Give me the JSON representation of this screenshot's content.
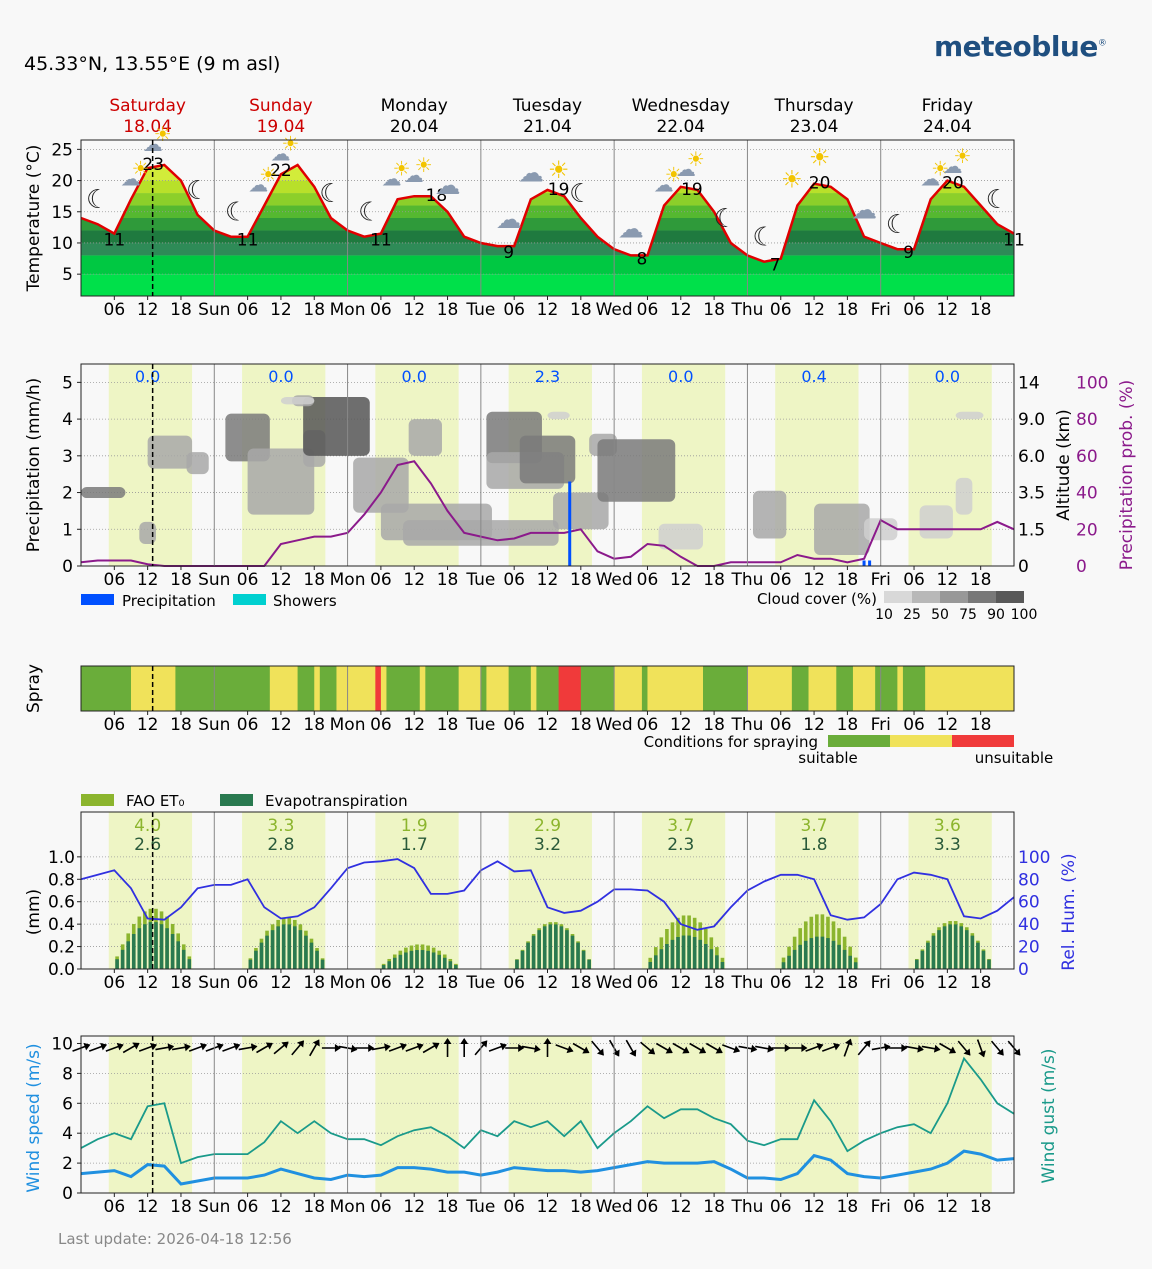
{
  "header": {
    "coordinates": "45.33°N, 13.55°E (9 m asl)",
    "brand": "meteoblue",
    "brand_mark": "®"
  },
  "footer": {
    "last_update": "Last update: 2026-04-18 12:56"
  },
  "days": [
    {
      "name": "Saturday",
      "date": "18.04",
      "weekend": true
    },
    {
      "name": "Sunday",
      "date": "19.04",
      "weekend": true
    },
    {
      "name": "Monday",
      "date": "20.04",
      "weekend": false
    },
    {
      "name": "Tuesday",
      "date": "21.04",
      "weekend": false
    },
    {
      "name": "Wednesday",
      "date": "22.04",
      "weekend": false
    },
    {
      "name": "Thursday",
      "date": "23.04",
      "weekend": false
    },
    {
      "name": "Friday",
      "date": "24.04",
      "weekend": false
    }
  ],
  "x_axis": {
    "hour_ticks": [
      "06",
      "12",
      "18"
    ],
    "day_abbrev": [
      "Sun",
      "Mon",
      "Tue",
      "Wed",
      "Thu",
      "Fri"
    ]
  },
  "current_time_hours": 12.9,
  "colors": {
    "weekend_text": "#cc0000",
    "temperature_line": "#e00000",
    "precipitation_prob": "#8b1a8b",
    "precipitation": "#0050ff",
    "showers": "#00d0d0",
    "rel_humidity": "#3030e0",
    "fao_et0": "#8cb52e",
    "evapotranspiration": "#2a7a50",
    "wind_speed": "#2090e0",
    "wind_gust": "#1a9a8a",
    "spray_suitable": "#6aad3a",
    "spray_medium": "#f0e25a",
    "spray_unsuitable": "#f03a3a",
    "daylight_band": "#eef5c5"
  },
  "chart_data": [
    {
      "id": "temperature",
      "type": "line",
      "ylabel": "Temperature (°C)",
      "yticks": [
        5,
        10,
        15,
        20,
        25
      ],
      "ylim": [
        1.5,
        26.5
      ],
      "x_unit": "hours from 2026-04-18 00:00",
      "x": [
        0,
        3,
        6,
        9,
        12,
        15,
        18,
        21,
        24,
        27,
        30,
        33,
        36,
        39,
        42,
        45,
        48,
        51,
        54,
        57,
        60,
        63,
        66,
        69,
        72,
        75,
        78,
        81,
        84,
        87,
        90,
        93,
        96,
        99,
        102,
        105,
        108,
        111,
        114,
        117,
        120,
        123,
        126,
        129,
        132,
        135,
        138,
        141,
        144,
        147,
        150,
        153,
        156,
        159,
        162,
        165,
        168
      ],
      "temperature": [
        14,
        13,
        11.5,
        17,
        22,
        22.5,
        20,
        14.5,
        12,
        11,
        11,
        16,
        21,
        22.5,
        19,
        14,
        12,
        11,
        11.5,
        17,
        17.5,
        17.5,
        15,
        11,
        10,
        9.5,
        9.5,
        17,
        18.5,
        17.5,
        14,
        11,
        9,
        8,
        8,
        16,
        19,
        18.5,
        15,
        10,
        8,
        7,
        7.5,
        16,
        19.5,
        19,
        17,
        11,
        10,
        9,
        9,
        17,
        20,
        19,
        16,
        13,
        11.5
      ],
      "min_labels": [
        {
          "x": 6,
          "v": 11
        },
        {
          "x": 30,
          "v": 11
        },
        {
          "x": 54,
          "v": 11
        },
        {
          "x": 77,
          "v": 9
        },
        {
          "x": 101,
          "v": 8
        },
        {
          "x": 125,
          "v": 7
        },
        {
          "x": 149,
          "v": 9
        },
        {
          "x": 168,
          "v": 11
        }
      ],
      "max_labels": [
        {
          "x": 13,
          "v": 23
        },
        {
          "x": 36,
          "v": 22
        },
        {
          "x": 64,
          "v": 18
        },
        {
          "x": 86,
          "v": 19
        },
        {
          "x": 110,
          "v": 19
        },
        {
          "x": 133,
          "v": 20
        },
        {
          "x": 157,
          "v": 20
        }
      ]
    },
    {
      "id": "precipitation",
      "type": "bar",
      "ylabel": "Precipitation (mm/h)",
      "ylabel_right_altitude": "Altitude (km)",
      "ylabel_right_prob": "Precipitation prob. (%)",
      "yticks": [
        0,
        1,
        2,
        3,
        4,
        5
      ],
      "altitude_ticks": [
        "0",
        "1.5",
        "3.5",
        "6.0",
        "9.0",
        "14"
      ],
      "prob_ticks": [
        "0",
        "20",
        "40",
        "60",
        "80",
        "100"
      ],
      "ylim": [
        0,
        5.5
      ],
      "daily_totals": [
        "0.0",
        "0.0",
        "0.0",
        "2.3",
        "0.0",
        "0.4",
        "0.0"
      ],
      "legend": [
        "Precipitation",
        "Showers"
      ],
      "cloud_cover_label": "Cloud cover (%)",
      "cloud_cover_levels": [
        "10",
        "25",
        "50",
        "75",
        "90",
        "100"
      ],
      "precip_bars": [
        {
          "x": 88,
          "v": 2.3
        },
        {
          "x": 141,
          "v": 0.15
        },
        {
          "x": 142,
          "v": 0.15
        }
      ],
      "prob_x": [
        0,
        3,
        6,
        9,
        12,
        15,
        18,
        21,
        24,
        27,
        30,
        33,
        36,
        39,
        42,
        45,
        48,
        51,
        54,
        57,
        60,
        63,
        66,
        69,
        72,
        75,
        78,
        81,
        84,
        87,
        90,
        93,
        96,
        99,
        102,
        105,
        108,
        111,
        114,
        117,
        120,
        123,
        126,
        129,
        132,
        135,
        138,
        141,
        144,
        147,
        150,
        153,
        156,
        159,
        162,
        165,
        168
      ],
      "precip_prob": [
        2,
        3,
        3,
        3,
        1,
        0,
        0,
        0,
        0,
        0,
        0,
        0,
        12,
        14,
        16,
        16,
        18,
        28,
        40,
        55,
        57,
        45,
        30,
        18,
        16,
        14,
        15,
        18,
        18,
        18,
        20,
        8,
        4,
        5,
        12,
        11,
        5,
        0,
        0,
        2,
        2,
        2,
        2,
        6,
        4,
        4,
        2,
        4,
        25,
        20,
        20,
        20,
        20,
        20,
        20,
        24,
        20
      ],
      "cloud_blobs": [
        {
          "x": 4,
          "alt": 2.0,
          "w": 8,
          "h": 0.3,
          "c": 75
        },
        {
          "x": 12,
          "alt": 0.9,
          "w": 3,
          "h": 0.6,
          "c": 50
        },
        {
          "x": 16,
          "alt": 3.1,
          "w": 8,
          "h": 0.9,
          "c": 50
        },
        {
          "x": 21,
          "alt": 2.8,
          "w": 4,
          "h": 0.6,
          "c": 50
        },
        {
          "x": 30,
          "alt": 3.5,
          "w": 8,
          "h": 1.3,
          "c": 75
        },
        {
          "x": 36,
          "alt": 2.3,
          "w": 12,
          "h": 1.8,
          "c": 50
        },
        {
          "x": 42,
          "alt": 3.2,
          "w": 4,
          "h": 1.0,
          "c": 50
        },
        {
          "x": 46,
          "alt": 3.8,
          "w": 12,
          "h": 1.6,
          "c": 90
        },
        {
          "x": 54,
          "alt": 2.2,
          "w": 10,
          "h": 1.5,
          "c": 50
        },
        {
          "x": 62,
          "alt": 3.5,
          "w": 6,
          "h": 1.0,
          "c": 50
        },
        {
          "x": 64,
          "alt": 1.2,
          "w": 20,
          "h": 1.0,
          "c": 50
        },
        {
          "x": 72,
          "alt": 0.9,
          "w": 28,
          "h": 0.7,
          "c": 50
        },
        {
          "x": 78,
          "alt": 3.5,
          "w": 10,
          "h": 1.4,
          "c": 75
        },
        {
          "x": 80,
          "alt": 2.6,
          "w": 14,
          "h": 1.0,
          "c": 50
        },
        {
          "x": 84,
          "alt": 2.9,
          "w": 10,
          "h": 1.3,
          "c": 75
        },
        {
          "x": 90,
          "alt": 1.5,
          "w": 10,
          "h": 1.0,
          "c": 50
        },
        {
          "x": 94,
          "alt": 3.3,
          "w": 5,
          "h": 0.6,
          "c": 50
        },
        {
          "x": 100,
          "alt": 2.6,
          "w": 14,
          "h": 1.7,
          "c": 75
        },
        {
          "x": 108,
          "alt": 0.8,
          "w": 8,
          "h": 0.7,
          "c": 25
        },
        {
          "x": 124,
          "alt": 1.4,
          "w": 6,
          "h": 1.3,
          "c": 50
        },
        {
          "x": 137,
          "alt": 1.0,
          "w": 10,
          "h": 1.4,
          "c": 50
        },
        {
          "x": 144,
          "alt": 1.0,
          "w": 6,
          "h": 0.6,
          "c": 25
        },
        {
          "x": 154,
          "alt": 1.2,
          "w": 6,
          "h": 0.9,
          "c": 25
        },
        {
          "x": 159,
          "alt": 1.9,
          "w": 3,
          "h": 1.0,
          "c": 25
        },
        {
          "x": 160,
          "alt": 4.1,
          "w": 5,
          "h": 0.2,
          "c": 25
        },
        {
          "x": 86,
          "alt": 4.1,
          "w": 4,
          "h": 0.2,
          "c": 25
        },
        {
          "x": 40,
          "alt": 4.5,
          "w": 4,
          "h": 0.3,
          "c": 50
        },
        {
          "x": 39,
          "alt": 4.5,
          "w": 6,
          "h": 0.2,
          "c": 25
        }
      ]
    },
    {
      "id": "spray",
      "type": "heatmap",
      "ylabel": "Spray",
      "legend_title": "Conditions for spraying",
      "legend_left": "suitable",
      "legend_right": "unsuitable",
      "segments": [
        {
          "start": 0,
          "end": 9,
          "v": "suitable"
        },
        {
          "start": 9,
          "end": 17,
          "v": "medium"
        },
        {
          "start": 17,
          "end": 24,
          "v": "suitable"
        },
        {
          "start": 24,
          "end": 34,
          "v": "suitable"
        },
        {
          "start": 34,
          "end": 39,
          "v": "medium"
        },
        {
          "start": 39,
          "end": 42,
          "v": "suitable"
        },
        {
          "start": 42,
          "end": 43,
          "v": "medium"
        },
        {
          "start": 43,
          "end": 46,
          "v": "suitable"
        },
        {
          "start": 46,
          "end": 48,
          "v": "medium"
        },
        {
          "start": 48,
          "end": 53,
          "v": "medium"
        },
        {
          "start": 53,
          "end": 54,
          "v": "unsuitable"
        },
        {
          "start": 54,
          "end": 55,
          "v": "medium"
        },
        {
          "start": 55,
          "end": 61,
          "v": "suitable"
        },
        {
          "start": 61,
          "end": 62,
          "v": "medium"
        },
        {
          "start": 62,
          "end": 68,
          "v": "suitable"
        },
        {
          "start": 68,
          "end": 72,
          "v": "medium"
        },
        {
          "start": 72,
          "end": 73,
          "v": "suitable"
        },
        {
          "start": 73,
          "end": 77,
          "v": "medium"
        },
        {
          "start": 77,
          "end": 81,
          "v": "suitable"
        },
        {
          "start": 81,
          "end": 82,
          "v": "medium"
        },
        {
          "start": 82,
          "end": 86,
          "v": "suitable"
        },
        {
          "start": 86,
          "end": 90,
          "v": "unsuitable"
        },
        {
          "start": 90,
          "end": 96,
          "v": "suitable"
        },
        {
          "start": 96,
          "end": 101,
          "v": "medium"
        },
        {
          "start": 101,
          "end": 102,
          "v": "suitable"
        },
        {
          "start": 102,
          "end": 112,
          "v": "medium"
        },
        {
          "start": 112,
          "end": 120,
          "v": "suitable"
        },
        {
          "start": 120,
          "end": 128,
          "v": "medium"
        },
        {
          "start": 128,
          "end": 131,
          "v": "suitable"
        },
        {
          "start": 131,
          "end": 136,
          "v": "medium"
        },
        {
          "start": 136,
          "end": 139,
          "v": "suitable"
        },
        {
          "start": 139,
          "end": 142,
          "v": "medium"
        },
        {
          "start": 142,
          "end": 143,
          "v": "medium"
        },
        {
          "start": 143,
          "end": 147,
          "v": "suitable"
        },
        {
          "start": 147,
          "end": 148,
          "v": "medium"
        },
        {
          "start": 148,
          "end": 152,
          "v": "suitable"
        },
        {
          "start": 152,
          "end": 168,
          "v": "medium"
        }
      ]
    },
    {
      "id": "evapotranspiration",
      "type": "bar",
      "ylabel": "(mm)",
      "ylabel_right": "Rel. Hum. (%)",
      "yticks": [
        "0.0",
        "0.2",
        "0.4",
        "0.6",
        "0.8",
        "1.0"
      ],
      "yticks_right": [
        "0",
        "20",
        "40",
        "60",
        "80",
        "100"
      ],
      "ylim": [
        0,
        1.4
      ],
      "legend": [
        "FAO ET₀",
        "Evapotranspiration"
      ],
      "daily_fao_et0": [
        "4.0",
        "3.3",
        "1.9",
        "2.9",
        "3.7",
        "3.7",
        "3.6"
      ],
      "daily_et": [
        "2.6",
        "2.8",
        "1.7",
        "3.2",
        "2.3",
        "1.8",
        "3.3"
      ],
      "peak_fao": [
        0.54,
        0.46,
        0.22,
        0.42,
        0.48,
        0.49,
        0.43
      ],
      "peak_et": [
        0.42,
        0.4,
        0.17,
        0.4,
        0.3,
        0.29,
        0.4
      ],
      "hum_x": [
        0,
        3,
        6,
        9,
        12,
        15,
        18,
        21,
        24,
        27,
        30,
        33,
        36,
        39,
        42,
        45,
        48,
        51,
        54,
        57,
        60,
        63,
        66,
        69,
        72,
        75,
        78,
        81,
        84,
        87,
        90,
        93,
        96,
        99,
        102,
        105,
        108,
        111,
        114,
        117,
        120,
        123,
        126,
        129,
        132,
        135,
        138,
        141,
        144,
        147,
        150,
        153,
        156,
        159,
        162,
        165,
        168
      ],
      "rel_humidity": [
        80,
        84,
        88,
        72,
        45,
        44,
        55,
        72,
        75,
        75,
        80,
        55,
        45,
        47,
        55,
        72,
        90,
        95,
        96,
        98,
        90,
        67,
        67,
        70,
        88,
        96,
        87,
        88,
        55,
        50,
        52,
        60,
        71,
        71,
        70,
        60,
        40,
        35,
        38,
        55,
        70,
        78,
        84,
        84,
        80,
        48,
        44,
        46,
        58,
        80,
        86,
        84,
        80,
        47,
        45,
        52,
        64
      ]
    },
    {
      "id": "wind",
      "type": "line",
      "ylabel": "Wind speed (m/s)",
      "ylabel_right": "Wind gust (m/s)",
      "yticks": [
        0,
        2,
        4,
        6,
        8,
        10
      ],
      "ylim": [
        0,
        10.5
      ],
      "wind_x": [
        0,
        3,
        6,
        9,
        12,
        15,
        18,
        21,
        24,
        27,
        30,
        33,
        36,
        39,
        42,
        45,
        48,
        51,
        54,
        57,
        60,
        63,
        66,
        69,
        72,
        75,
        78,
        81,
        84,
        87,
        90,
        93,
        96,
        99,
        102,
        105,
        108,
        111,
        114,
        117,
        120,
        123,
        126,
        129,
        132,
        135,
        138,
        141,
        144,
        147,
        150,
        153,
        156,
        159,
        162,
        165,
        168
      ],
      "wind_speed": [
        1.3,
        1.4,
        1.5,
        1.1,
        1.9,
        1.8,
        0.6,
        0.8,
        1.0,
        1.0,
        1.0,
        1.2,
        1.6,
        1.3,
        1.0,
        0.9,
        1.2,
        1.1,
        1.2,
        1.7,
        1.7,
        1.6,
        1.4,
        1.4,
        1.2,
        1.4,
        1.7,
        1.6,
        1.5,
        1.5,
        1.4,
        1.5,
        1.7,
        1.9,
        2.1,
        2.0,
        2.0,
        2.0,
        2.1,
        1.6,
        1.0,
        1.0,
        0.9,
        1.3,
        2.5,
        2.2,
        1.3,
        1.1,
        1.0,
        1.2,
        1.4,
        1.6,
        2.0,
        2.8,
        2.6,
        2.2,
        2.3
      ],
      "wind_gust": [
        3.0,
        3.6,
        4.0,
        3.6,
        5.8,
        6.0,
        2.0,
        2.4,
        2.6,
        2.6,
        2.6,
        3.4,
        4.8,
        4.0,
        4.8,
        4.0,
        3.6,
        3.6,
        3.2,
        3.8,
        4.2,
        4.4,
        3.8,
        3.0,
        4.2,
        3.8,
        4.8,
        4.4,
        4.8,
        3.8,
        4.8,
        3.0,
        4.0,
        4.8,
        5.8,
        5.0,
        5.6,
        5.6,
        5.0,
        4.6,
        3.5,
        3.2,
        3.6,
        3.6,
        6.2,
        4.8,
        2.8,
        3.5,
        4.0,
        4.4,
        4.6,
        4.0,
        6.0,
        9.0,
        7.6,
        6.0,
        5.3
      ],
      "wind_dir_deg": [
        250,
        250,
        250,
        240,
        250,
        260,
        260,
        250,
        250,
        250,
        260,
        240,
        230,
        220,
        210,
        270,
        280,
        270,
        260,
        250,
        250,
        240,
        180,
        180,
        220,
        250,
        270,
        280,
        180,
        290,
        300,
        320,
        330,
        330,
        310,
        300,
        300,
        300,
        300,
        290,
        280,
        280,
        270,
        270,
        250,
        250,
        200,
        220,
        260,
        270,
        280,
        280,
        300,
        320,
        340,
        320,
        320
      ]
    }
  ]
}
